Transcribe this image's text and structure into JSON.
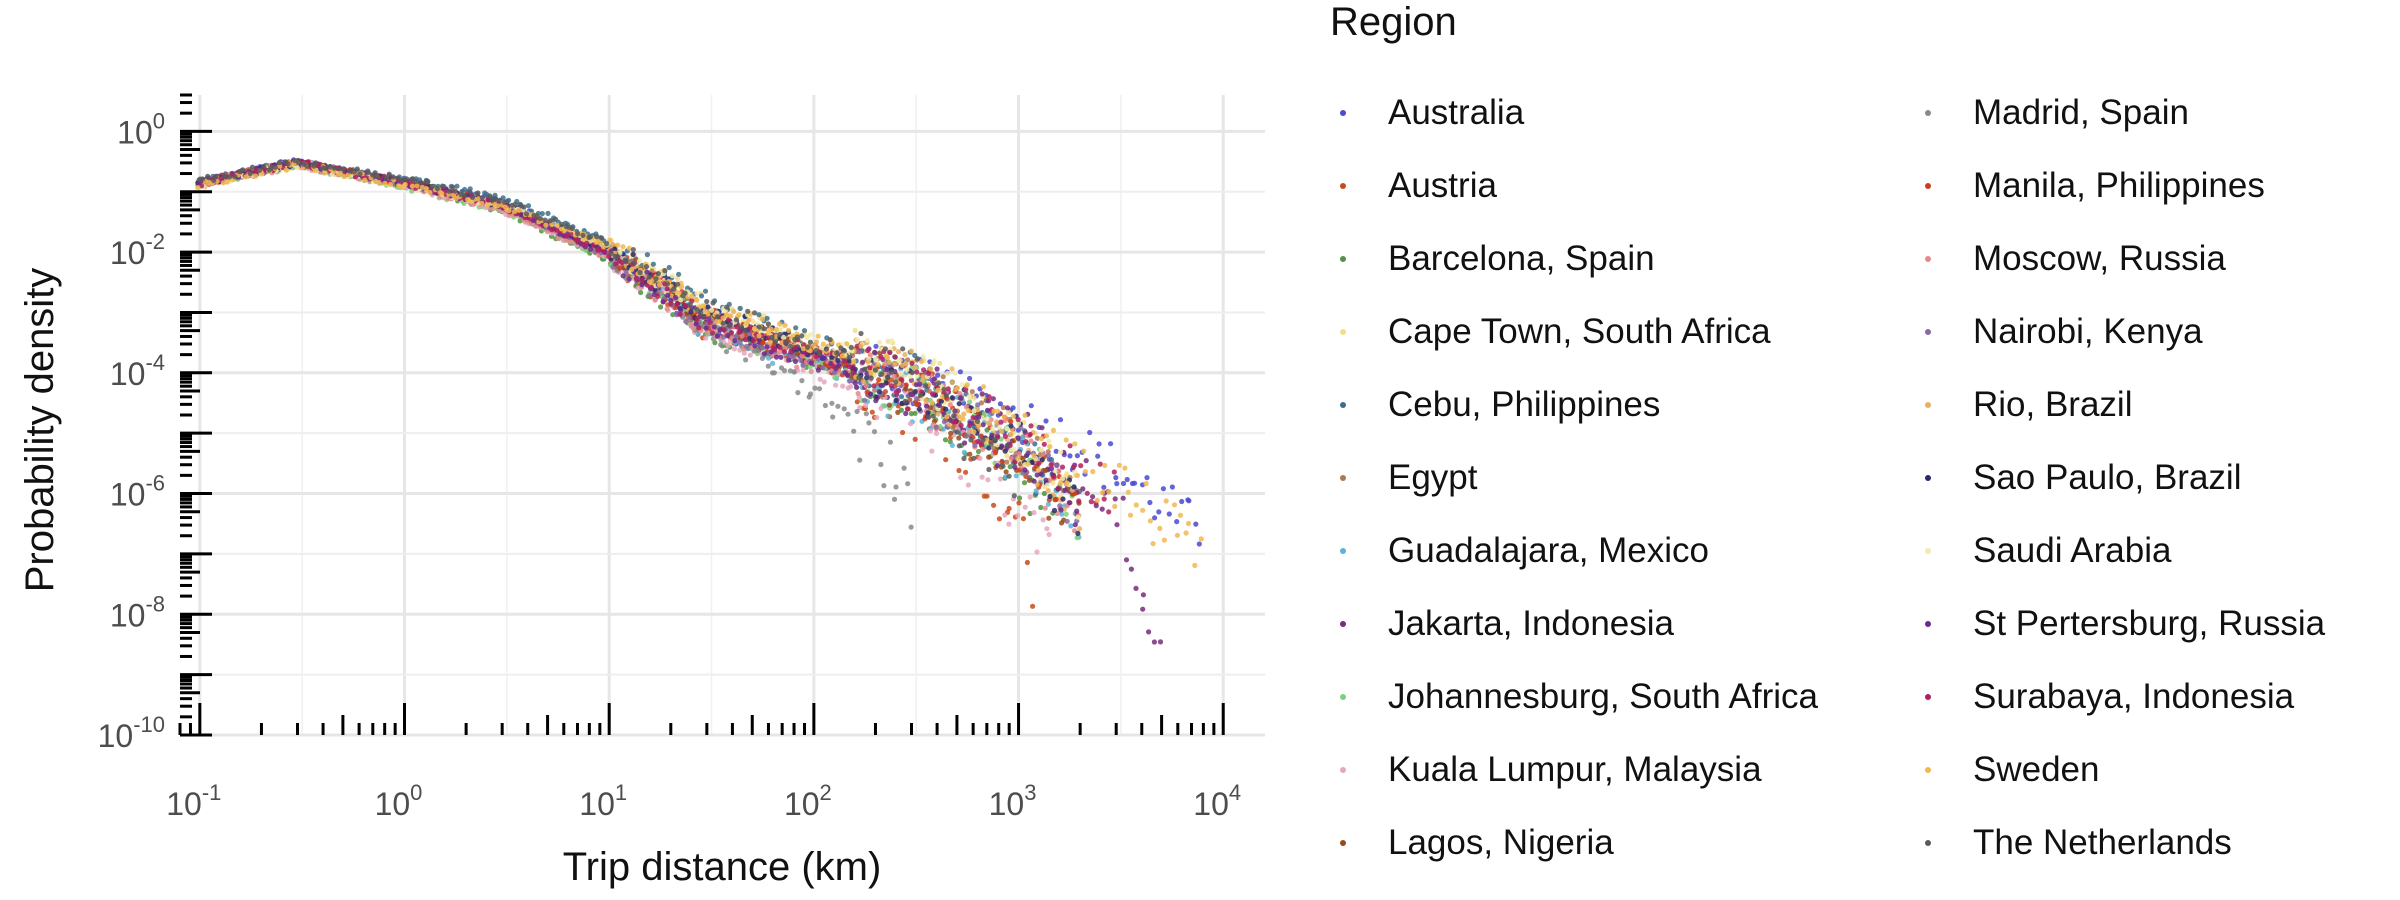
{
  "chart_data": {
    "type": "scatter",
    "xlabel": "Trip distance (km)",
    "ylabel": "Probability density",
    "x_scale": "log10",
    "y_scale": "log10",
    "xlim": [
      0.08,
      16000
    ],
    "ylim": [
      1e-10,
      4
    ],
    "x_ticks": [
      "10^-1",
      "10^0",
      "10^1",
      "10^2",
      "10^3",
      "10^4"
    ],
    "y_ticks": [
      "10^0",
      "10^-2",
      "10^-4",
      "10^-6",
      "10^-8",
      "10^-10"
    ],
    "grid": true,
    "legend_title": "Region",
    "legend_position": "right",
    "series": [
      {
        "name": "Australia",
        "color": "#4a4ad2",
        "x": [
          0.1,
          0.3,
          1,
          3,
          10,
          30,
          100,
          300,
          1000,
          2000,
          4000,
          8000
        ],
        "y": [
          0.15,
          0.32,
          0.15,
          0.07,
          0.01,
          0.0006,
          0.0002,
          7e-05,
          1.8e-05,
          6e-06,
          1.2e-06,
          2e-07
        ]
      },
      {
        "name": "Austria",
        "color": "#c84a1c",
        "x": [
          0.1,
          0.3,
          1,
          3,
          10,
          30,
          100,
          200,
          500,
          1000,
          1200
        ],
        "y": [
          0.14,
          0.3,
          0.14,
          0.06,
          0.008,
          0.0005,
          0.0002,
          5e-05,
          8e-06,
          4e-07,
          2e-08
        ]
      },
      {
        "name": "Barcelona, Spain",
        "color": "#4f9440",
        "x": [
          0.1,
          0.3,
          1,
          3,
          10,
          30,
          100,
          300,
          800,
          1500
        ],
        "y": [
          0.13,
          0.29,
          0.13,
          0.05,
          0.007,
          0.0005,
          0.00015,
          5e-05,
          5e-06,
          3e-07
        ]
      },
      {
        "name": "Cape Town, South Africa",
        "color": "#f3dd8c",
        "x": [
          0.1,
          0.3,
          1,
          3,
          10,
          30,
          100,
          300,
          1000,
          2000
        ],
        "y": [
          0.13,
          0.28,
          0.13,
          0.06,
          0.012,
          0.0012,
          0.0003,
          0.0001,
          8e-06,
          8e-07
        ]
      },
      {
        "name": "Cebu, Philippines",
        "color": "#3e6e8c",
        "x": [
          0.1,
          0.3,
          1,
          3,
          10,
          30,
          100,
          300,
          1000,
          2000
        ],
        "y": [
          0.15,
          0.3,
          0.16,
          0.08,
          0.015,
          0.0015,
          0.0003,
          8e-05,
          6e-06,
          5e-07
        ]
      },
      {
        "name": "Egypt",
        "color": "#b07850",
        "x": [
          0.1,
          0.3,
          1,
          3,
          10,
          30,
          100,
          300,
          1000,
          2000
        ],
        "y": [
          0.14,
          0.3,
          0.14,
          0.06,
          0.01,
          0.0008,
          0.0002,
          7e-05,
          7e-06,
          6e-07
        ]
      },
      {
        "name": "Guadalajara, Mexico",
        "color": "#5ab4d6",
        "x": [
          0.1,
          0.3,
          1,
          3,
          10,
          30,
          100,
          300,
          1000,
          2000
        ],
        "y": [
          0.14,
          0.3,
          0.14,
          0.06,
          0.009,
          0.0005,
          0.00012,
          4e-05,
          4e-06,
          3e-07
        ]
      },
      {
        "name": "Jakarta, Indonesia",
        "color": "#7a2a7a",
        "x": [
          0.1,
          0.3,
          1,
          3,
          10,
          30,
          100,
          300,
          1000,
          3000,
          5000
        ],
        "y": [
          0.14,
          0.3,
          0.14,
          0.06,
          0.009,
          0.0006,
          0.0002,
          7e-05,
          1e-05,
          8e-07,
          2e-09
        ]
      },
      {
        "name": "Johannesburg, South Africa",
        "color": "#7ed07a",
        "x": [
          0.1,
          0.3,
          1,
          3,
          10,
          30,
          100,
          300,
          1000,
          2000
        ],
        "y": [
          0.13,
          0.28,
          0.12,
          0.05,
          0.008,
          0.0006,
          0.00015,
          5e-05,
          5e-06,
          4e-07
        ]
      },
      {
        "name": "Kuala Lumpur, Malaysia",
        "color": "#e6a6c0",
        "x": [
          0.1,
          0.3,
          1,
          3,
          10,
          30,
          100,
          300,
          700,
          1500
        ],
        "y": [
          0.13,
          0.28,
          0.13,
          0.05,
          0.008,
          0.0005,
          0.00012,
          3e-05,
          2e-06,
          1.5e-07
        ]
      },
      {
        "name": "Lagos, Nigeria",
        "color": "#9a4a1a",
        "x": [
          0.1,
          0.3,
          1,
          3,
          10,
          30,
          100,
          300,
          1000,
          2000
        ],
        "y": [
          0.14,
          0.3,
          0.14,
          0.06,
          0.01,
          0.0007,
          0.00018,
          5e-05,
          4e-06,
          3e-07
        ]
      },
      {
        "name": "Madrid, Spain",
        "color": "#8a8a8a",
        "x": [
          0.1,
          0.3,
          1,
          3,
          10,
          30,
          100,
          200,
          300
        ],
        "y": [
          0.14,
          0.3,
          0.14,
          0.06,
          0.009,
          0.0005,
          5e-05,
          6e-06,
          7e-07
        ]
      },
      {
        "name": "Manila, Philippines",
        "color": "#d23c1c",
        "x": [
          0.1,
          0.3,
          1,
          3,
          10,
          30,
          100,
          300,
          1000,
          2000
        ],
        "y": [
          0.14,
          0.3,
          0.14,
          0.06,
          0.01,
          0.0008,
          0.0002,
          6e-05,
          6e-06,
          5e-07
        ]
      },
      {
        "name": "Moscow, Russia",
        "color": "#e48a8a",
        "x": [
          0.1,
          0.3,
          1,
          3,
          10,
          30,
          100,
          300,
          1000,
          2000
        ],
        "y": [
          0.13,
          0.28,
          0.13,
          0.05,
          0.008,
          0.0006,
          0.00015,
          5e-05,
          5e-06,
          4e-07
        ]
      },
      {
        "name": "Nairobi, Kenya",
        "color": "#8a6aa6",
        "x": [
          0.1,
          0.3,
          1,
          3,
          10,
          30,
          100,
          300,
          1000,
          2000
        ],
        "y": [
          0.14,
          0.3,
          0.14,
          0.06,
          0.009,
          0.0006,
          0.00015,
          5e-05,
          5e-06,
          4e-07
        ]
      },
      {
        "name": "Rio, Brazil",
        "color": "#e8b060",
        "x": [
          0.1,
          0.3,
          1,
          3,
          10,
          30,
          100,
          300,
          1000,
          2000
        ],
        "y": [
          0.14,
          0.3,
          0.14,
          0.06,
          0.012,
          0.001,
          0.0003,
          8e-05,
          8e-06,
          6e-07
        ]
      },
      {
        "name": "Sao Paulo, Brazil",
        "color": "#2a2a6a",
        "x": [
          0.1,
          0.3,
          1,
          3,
          10,
          30,
          100,
          300,
          1000,
          2000
        ],
        "y": [
          0.14,
          0.3,
          0.14,
          0.06,
          0.011,
          0.0009,
          0.00025,
          7e-05,
          7e-06,
          5e-07
        ]
      },
      {
        "name": "Saudi Arabia",
        "color": "#f0ecb0",
        "x": [
          0.1,
          0.3,
          1,
          3,
          10,
          30,
          100,
          300,
          1000,
          2000
        ],
        "y": [
          0.13,
          0.28,
          0.13,
          0.06,
          0.012,
          0.0012,
          0.0003,
          0.0001,
          1e-05,
          1e-06
        ]
      },
      {
        "name": "St Pertersburg, Russia",
        "color": "#6a2a8a",
        "x": [
          0.1,
          0.3,
          1,
          3,
          10,
          30,
          100,
          300,
          1000,
          2000
        ],
        "y": [
          0.14,
          0.3,
          0.14,
          0.06,
          0.009,
          0.0006,
          0.00015,
          5e-05,
          5e-06,
          4e-07
        ]
      },
      {
        "name": "Surabaya, Indonesia",
        "color": "#b02060",
        "x": [
          0.1,
          0.3,
          1,
          3,
          10,
          30,
          100,
          300,
          1000,
          3000
        ],
        "y": [
          0.14,
          0.3,
          0.14,
          0.06,
          0.009,
          0.0007,
          0.0002,
          6e-05,
          8e-06,
          8e-07
        ]
      },
      {
        "name": "Sweden",
        "color": "#f0b850",
        "x": [
          0.1,
          0.3,
          1,
          3,
          10,
          30,
          100,
          300,
          1000,
          3000,
          8000
        ],
        "y": [
          0.13,
          0.28,
          0.13,
          0.06,
          0.012,
          0.0012,
          0.0003,
          0.0001,
          1e-05,
          1.2e-06,
          1e-07
        ]
      },
      {
        "name": "The Netherlands",
        "color": "#5a5a5a",
        "x": [
          0.1,
          0.3,
          1,
          3,
          10,
          30,
          100,
          300,
          500,
          1000
        ],
        "y": [
          0.15,
          0.32,
          0.16,
          0.07,
          0.014,
          0.0012,
          0.0003,
          9e-05,
          1e-05,
          2e-06
        ]
      }
    ]
  }
}
